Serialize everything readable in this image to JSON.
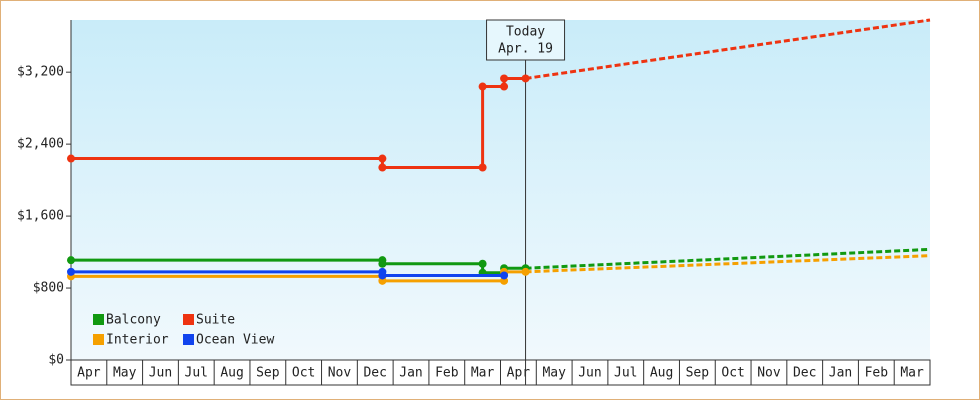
{
  "chart_data": {
    "type": "line",
    "categories": [
      "Apr",
      "May",
      "Jun",
      "Jul",
      "Aug",
      "Sep",
      "Oct",
      "Nov",
      "Dec",
      "Jan",
      "Feb",
      "Mar",
      "Apr",
      "May",
      "Jun",
      "Jul",
      "Aug",
      "Sep",
      "Oct",
      "Nov",
      "Dec",
      "Jan",
      "Feb",
      "Mar"
    ],
    "xlim": [
      0,
      24
    ],
    "ylim": [
      0,
      3780
    ],
    "yticks": [
      {
        "value": 0,
        "label": "$0"
      },
      {
        "value": 800,
        "label": "$800"
      },
      {
        "value": 1600,
        "label": "$1,600"
      },
      {
        "value": 2400,
        "label": "$2,400"
      },
      {
        "value": 3200,
        "label": "$3,200"
      }
    ],
    "today": {
      "label": "Today",
      "date": "Apr. 19",
      "x": 12.7
    },
    "legend": "lower left",
    "series": [
      {
        "name": "Balcony",
        "color": "#119911",
        "x": [
          0,
          8.7,
          8.7,
          11.5,
          11.5,
          12.1,
          12.1,
          12.7
        ],
        "values": [
          1110,
          1110,
          1070,
          1070,
          970,
          970,
          1020,
          1020
        ],
        "forecast_x": [
          12.7,
          24
        ],
        "forecast_values": [
          1020,
          1230
        ]
      },
      {
        "name": "Suite",
        "color": "#ee3311",
        "x": [
          0,
          8.7,
          8.7,
          11.5,
          11.5,
          12.1,
          12.1,
          12.7
        ],
        "values": [
          2240,
          2240,
          2140,
          2140,
          3040,
          3040,
          3130,
          3130
        ],
        "forecast_x": [
          12.7,
          24
        ],
        "forecast_values": [
          3130,
          3780
        ]
      },
      {
        "name": "Interior",
        "color": "#f5a000",
        "x": [
          0,
          8.7,
          8.7,
          12.1,
          12.1,
          12.7
        ],
        "values": [
          930,
          930,
          880,
          880,
          980,
          980
        ],
        "forecast_x": [
          12.7,
          24
        ],
        "forecast_values": [
          980,
          1160
        ]
      },
      {
        "name": "Ocean View",
        "color": "#1144ee",
        "x": [
          0,
          8.7,
          8.7,
          12.1
        ],
        "values": [
          980,
          980,
          940,
          940
        ]
      }
    ]
  }
}
